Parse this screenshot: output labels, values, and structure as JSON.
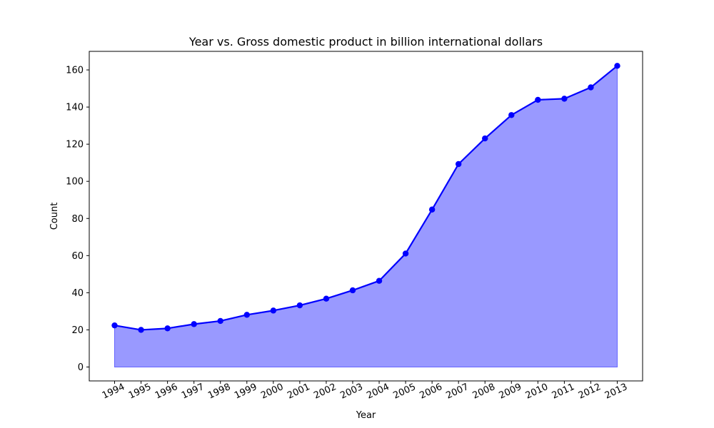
{
  "chart_data": {
    "type": "area",
    "title": "Year vs. Gross domestic product in billion international dollars",
    "xlabel": "Year",
    "ylabel": "Count",
    "categories": [
      "1994",
      "1995",
      "1996",
      "1997",
      "1998",
      "1999",
      "2000",
      "2001",
      "2002",
      "2003",
      "2004",
      "2005",
      "2006",
      "2007",
      "2008",
      "2009",
      "2010",
      "2011",
      "2012",
      "2013"
    ],
    "values": [
      22.4,
      20.0,
      20.8,
      23.1,
      24.8,
      28.1,
      30.4,
      33.2,
      36.8,
      41.3,
      46.4,
      61.1,
      84.8,
      109.3,
      123.1,
      135.7,
      143.9,
      144.5,
      150.6,
      162.2
    ],
    "yticks": [
      0,
      20,
      40,
      60,
      80,
      100,
      120,
      140,
      160
    ],
    "ylim": [
      -7.5,
      170
    ],
    "grid": false,
    "line_color": "#0000ff",
    "fill_color": "#9999ff",
    "fill_edge_color": "#6666ff"
  }
}
